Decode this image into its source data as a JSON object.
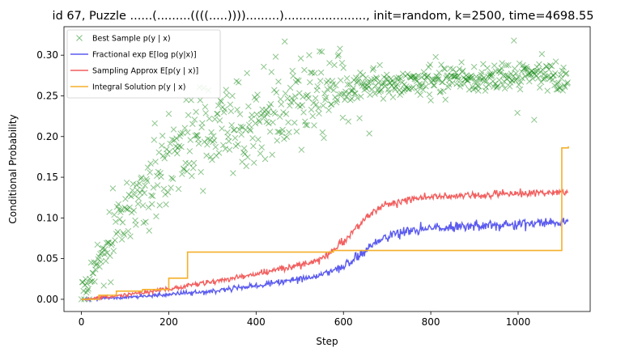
{
  "chart_data": {
    "type": "line",
    "title": "id 67, Puzzle ......(.........((((.....)))).........)......................, init=random, k=2500, time=4698.55",
    "xlabel": "Step",
    "ylabel": "Conditional Probability",
    "xlim": [
      -40,
      1165
    ],
    "ylim": [
      -0.015,
      0.335
    ],
    "xticks": [
      0,
      200,
      400,
      600,
      800,
      1000
    ],
    "yticks": [
      0.0,
      0.05,
      0.1,
      0.15,
      0.2,
      0.25,
      0.3
    ],
    "ytick_labels": [
      "0.00",
      "0.05",
      "0.10",
      "0.15",
      "0.20",
      "0.25",
      "0.30"
    ],
    "legend_position": "upper-left",
    "grid": false,
    "series": [
      {
        "name": "Best Sample p(y | x)",
        "kind": "scatter-x",
        "color": "#008000",
        "trend": {
          "x": [
            0,
            20,
            50,
            100,
            150,
            200,
            250,
            300,
            400,
            500,
            550,
            600,
            650,
            700,
            800,
            900,
            1000,
            1115
          ],
          "y": [
            0.0,
            0.025,
            0.06,
            0.1,
            0.14,
            0.165,
            0.185,
            0.2,
            0.215,
            0.235,
            0.245,
            0.255,
            0.262,
            0.265,
            0.268,
            0.27,
            0.272,
            0.273
          ]
        }
      },
      {
        "name": "Fractional exp E[log p(y|x)]",
        "kind": "line",
        "color": "#5b5bef",
        "trend": {
          "x": [
            0,
            100,
            200,
            300,
            400,
            500,
            550,
            600,
            650,
            700,
            750,
            800,
            900,
            1000,
            1115
          ],
          "y": [
            0.0,
            0.002,
            0.006,
            0.01,
            0.017,
            0.025,
            0.03,
            0.04,
            0.06,
            0.078,
            0.084,
            0.087,
            0.09,
            0.093,
            0.095
          ]
        }
      },
      {
        "name": "Sampling Approx E[p(y | x)]",
        "kind": "line",
        "color": "#f25f5f",
        "trend": {
          "x": [
            0,
            100,
            200,
            300,
            400,
            500,
            550,
            600,
            650,
            700,
            750,
            800,
            900,
            1000,
            1115
          ],
          "y": [
            0.0,
            0.005,
            0.013,
            0.022,
            0.031,
            0.042,
            0.05,
            0.07,
            0.1,
            0.117,
            0.123,
            0.126,
            0.128,
            0.13,
            0.132
          ]
        }
      },
      {
        "name": "Integral Solution p(y | x)",
        "kind": "step",
        "color": "#f5b02a",
        "x": [
          0,
          40,
          80,
          140,
          200,
          243,
          577,
          1100,
          1115
        ],
        "y": [
          0.0,
          0.005,
          0.01,
          0.012,
          0.026,
          0.058,
          0.06,
          0.186,
          0.188
        ]
      }
    ],
    "legend": [
      {
        "name": "Best Sample p(y | x)"
      },
      {
        "name": "Fractional exp E[log p(y|x)]"
      },
      {
        "name": "Sampling Approx E[p(y | x)]"
      },
      {
        "name": "Integral Solution p(y | x)"
      }
    ]
  }
}
